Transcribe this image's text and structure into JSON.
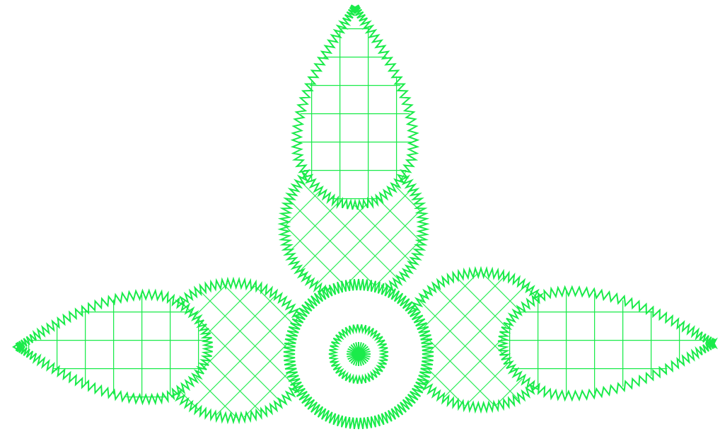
{
  "design": {
    "stroke_color": "#1aeb4a",
    "background_color": "#ffffff",
    "motif": "embroidery-petal-flower",
    "petals": [
      {
        "id": "top-outer",
        "fill": "grid"
      },
      {
        "id": "top-inner",
        "fill": "diamond-lattice"
      },
      {
        "id": "left-inner",
        "fill": "diamond-lattice"
      },
      {
        "id": "left-outer",
        "fill": "grid"
      },
      {
        "id": "right-inner",
        "fill": "diamond-lattice"
      },
      {
        "id": "right-outer",
        "fill": "grid"
      }
    ],
    "center": {
      "rings": 2,
      "inner_star": true
    }
  }
}
